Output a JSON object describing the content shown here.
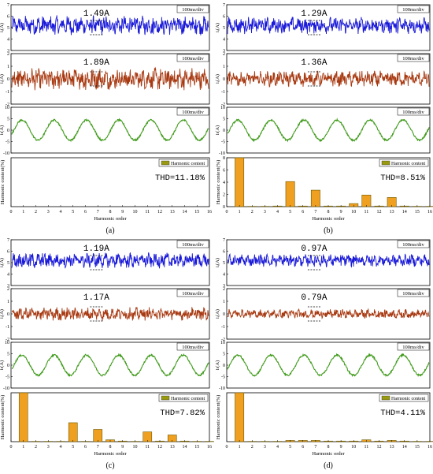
{
  "div_label": "100ms/div",
  "y_labels": {
    "blue": "iᵢ(A)",
    "red": "iᵢ(A)",
    "green": "iₗ(A)",
    "harm": "Harmonic content(%)"
  },
  "harm_xlabel": "Harmonic order",
  "legend_label": "Harmonic content",
  "colors": {
    "blue": "#1a1ad8",
    "red": "#a83a12",
    "green": "#3f9a1a",
    "bar_fill": "#f0a020",
    "bar_edge": "#6a5a00",
    "legend_swatch": "#9a9a10",
    "thd_text": "#000000"
  },
  "panels": [
    {
      "id": "a",
      "caption": "(a)",
      "blue_ripple": "1.49A",
      "red_ripple": "1.89A",
      "thd": "THD=11.18%",
      "chart_data": {
        "type": "bar",
        "x": [
          1,
          2,
          3,
          4,
          5,
          6,
          7,
          8,
          9,
          10,
          11,
          12,
          13,
          14,
          15,
          16
        ],
        "values": [
          0,
          0,
          0,
          0,
          0,
          0,
          0,
          0,
          0,
          0,
          0,
          0,
          0,
          0,
          0,
          0
        ],
        "xlim": [
          0,
          16
        ],
        "ylim": [
          0,
          8
        ],
        "xlabel": "Harmonic order",
        "ylabel": "Harmonic content(%)"
      },
      "blue_ticks": [
        "7",
        "6",
        "5",
        "4",
        "3"
      ],
      "red_ticks": [
        "2",
        "1",
        "0",
        "-1",
        "-2"
      ],
      "green_ticks": [
        "10",
        "5",
        "0",
        "-5",
        "-10"
      ],
      "harm_ticks": []
    },
    {
      "id": "b",
      "caption": "(b)",
      "blue_ripple": "1.29A",
      "red_ripple": "1.36A",
      "thd": "THD=8.51%",
      "chart_data": {
        "type": "bar",
        "x": [
          1,
          2,
          3,
          4,
          5,
          6,
          7,
          8,
          9,
          10,
          11,
          12,
          13,
          14,
          15,
          16
        ],
        "values": [
          8.0,
          0.05,
          0.05,
          0.1,
          4.1,
          0.1,
          2.7,
          0.1,
          0.1,
          0.5,
          1.9,
          0.1,
          1.5,
          0.1,
          0.05,
          0.05
        ],
        "xlim": [
          0,
          16
        ],
        "ylim": [
          0,
          8
        ],
        "xlabel": "Harmonic order",
        "ylabel": "Harmonic content(%)"
      },
      "blue_ticks": [
        "7",
        "6",
        "5",
        "4",
        "3"
      ],
      "red_ticks": [
        "2",
        "1",
        "0",
        "-1",
        "-2"
      ],
      "green_ticks": [
        "10",
        "5",
        "0",
        "-5",
        "-10"
      ],
      "harm_ticks": [
        "8",
        "6",
        "4",
        "2",
        "0"
      ]
    },
    {
      "id": "c",
      "caption": "(c)",
      "blue_ripple": "1.19A",
      "red_ripple": "1.17A",
      "thd": "THD=7.82%",
      "chart_data": {
        "type": "bar",
        "x": [
          1,
          2,
          3,
          4,
          5,
          6,
          7,
          8,
          9,
          10,
          11,
          12,
          13,
          14,
          15,
          16
        ],
        "values": [
          8.0,
          0.05,
          0.05,
          0.05,
          3.1,
          0.05,
          2.0,
          0.3,
          0.1,
          0.05,
          1.6,
          0.1,
          1.1,
          0.1,
          0.05,
          0.05
        ],
        "xlim": [
          0,
          16
        ],
        "ylim": [
          0,
          8
        ],
        "xlabel": "Harmonic order",
        "ylabel": "Harmonic content(%)"
      },
      "blue_ticks": [
        "7",
        "6",
        "5",
        "4",
        "3"
      ],
      "red_ticks": [
        "2",
        "1",
        "0",
        "-1",
        "-2"
      ],
      "green_ticks": [
        "10",
        "5",
        "0",
        "-5",
        "-10"
      ],
      "harm_ticks": []
    },
    {
      "id": "d",
      "caption": "(d)",
      "blue_ripple": "0.97A",
      "red_ripple": "0.79A",
      "thd": "THD=4.11%",
      "chart_data": {
        "type": "bar",
        "x": [
          1,
          2,
          3,
          4,
          5,
          6,
          7,
          8,
          9,
          10,
          11,
          12,
          13,
          14,
          15,
          16
        ],
        "values": [
          8.0,
          0.05,
          0.05,
          0.05,
          0.2,
          0.2,
          0.2,
          0.1,
          0.1,
          0.1,
          0.3,
          0.1,
          0.2,
          0.1,
          0.05,
          0.05
        ],
        "xlim": [
          0,
          16
        ],
        "ylim": [
          0,
          8
        ],
        "xlabel": "Harmonic order",
        "ylabel": "Harmonic content(%)"
      },
      "blue_ticks": [
        "7",
        "6",
        "5",
        "4",
        "3"
      ],
      "red_ticks": [
        "2",
        "1",
        "0",
        "-1",
        "-2"
      ],
      "green_ticks": [
        "10",
        "5",
        "0",
        "-5",
        "-10"
      ],
      "harm_ticks": []
    }
  ]
}
